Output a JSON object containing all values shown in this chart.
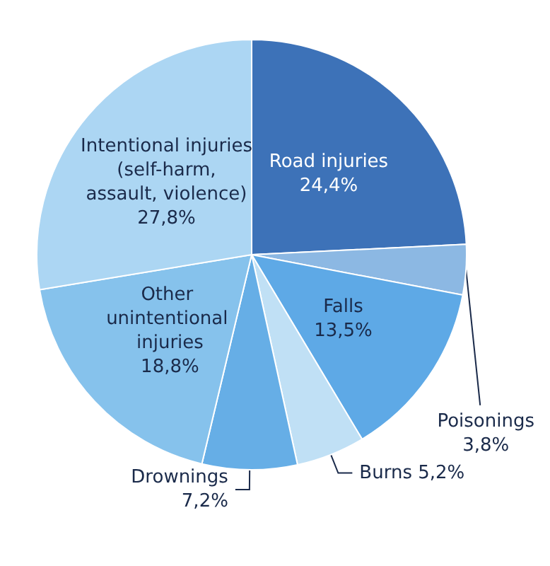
{
  "chart_data": {
    "type": "pie",
    "categories": [
      "Road injuries",
      "Poisonings",
      "Falls",
      "Burns",
      "Drownings",
      "Other unintentional injuries",
      "Intentional injuries (self-harm, assault, violence)"
    ],
    "values": [
      24.4,
      3.8,
      13.5,
      5.2,
      7.2,
      18.8,
      27.8
    ],
    "value_labels": [
      "24,4%",
      "3,8%",
      "13,5%",
      "5,2%",
      "7,2%",
      "18,8%",
      "27,8%"
    ],
    "colors": [
      "#3d72b8",
      "#8cb8e3",
      "#5ea9e6",
      "#c0e0f5",
      "#66aee6",
      "#86c2ec",
      "#acd6f3"
    ]
  }
}
